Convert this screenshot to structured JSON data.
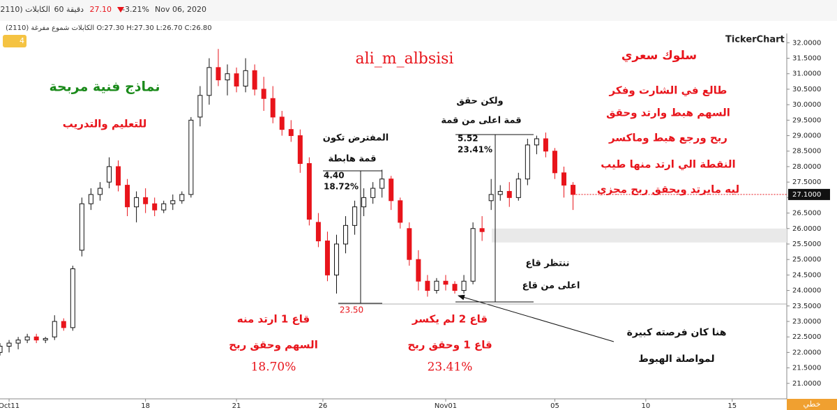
{
  "header": {
    "date": "Nov 06, 2020",
    "change": "-3.21%",
    "price": "27.10",
    "interval": "60 دقيقة",
    "symbol": "(2110) الكابلات",
    "ohlc_line": "(2110) الكابلات شموع مفرغة O:27.30 H:27.30 L:26.70 C:26.80",
    "alerts": "4",
    "logo": "TickerChart",
    "mode_button": "خطي"
  },
  "chart_data": {
    "type": "candlestick",
    "x": [
      0,
      2,
      4,
      6,
      8,
      10,
      12,
      14,
      16,
      18,
      20,
      22,
      24,
      26,
      28,
      30,
      32,
      34,
      36,
      38,
      40,
      42,
      44,
      46,
      48,
      50,
      52,
      54,
      56,
      58,
      60,
      62,
      64,
      66,
      68,
      70,
      72,
      74,
      76,
      78,
      80,
      82,
      84,
      86,
      88,
      90,
      92,
      94,
      96,
      98,
      100,
      102,
      104,
      106,
      108,
      110,
      112,
      114,
      116,
      118,
      120,
      122,
      124,
      126
    ],
    "open": [
      22.0,
      22.2,
      22.3,
      22.4,
      22.5,
      22.4,
      22.5,
      23.0,
      22.8,
      25.3,
      26.8,
      27.1,
      27.5,
      28.0,
      27.4,
      26.7,
      27.0,
      26.8,
      26.6,
      26.8,
      26.9,
      27.1,
      29.6,
      30.3,
      31.2,
      30.8,
      31.0,
      30.6,
      31.1,
      30.5,
      30.2,
      29.6,
      29.2,
      29.0,
      28.1,
      26.2,
      25.6,
      24.5,
      25.5,
      26.1,
      26.7,
      27.0,
      27.3,
      27.6,
      26.9,
      26.0,
      25.0,
      24.3,
      24.0,
      24.3,
      24.2,
      24.0,
      24.3,
      26.0,
      26.9,
      27.1,
      27.2,
      27.0,
      27.6,
      28.7,
      28.9,
      28.5,
      27.8,
      27.4
    ],
    "high": [
      22.3,
      22.4,
      22.5,
      22.6,
      22.6,
      22.5,
      23.2,
      23.1,
      24.8,
      27.0,
      27.3,
      27.5,
      28.3,
      28.2,
      27.6,
      27.2,
      27.3,
      27.0,
      26.9,
      27.1,
      27.2,
      29.6,
      30.6,
      31.5,
      31.8,
      31.3,
      31.2,
      31.5,
      31.3,
      30.9,
      30.6,
      29.8,
      29.5,
      29.2,
      28.3,
      26.5,
      25.9,
      25.8,
      26.4,
      26.9,
      27.3,
      27.5,
      27.9,
      27.7,
      27.0,
      26.2,
      25.3,
      24.5,
      24.4,
      24.5,
      24.3,
      24.5,
      26.2,
      26.4,
      27.6,
      27.4,
      27.5,
      27.8,
      28.9,
      29.0,
      29.1,
      28.6,
      28.0,
      27.5
    ],
    "low": [
      21.9,
      22.0,
      22.1,
      22.3,
      22.3,
      22.3,
      22.4,
      22.7,
      22.7,
      25.1,
      26.6,
      26.9,
      27.3,
      27.2,
      26.4,
      26.2,
      26.5,
      26.4,
      26.5,
      26.6,
      26.8,
      27.0,
      29.3,
      30.0,
      30.6,
      30.3,
      30.4,
      30.4,
      30.3,
      29.8,
      29.4,
      29.0,
      28.8,
      27.8,
      26.1,
      25.4,
      24.3,
      23.9,
      25.2,
      25.8,
      26.4,
      26.8,
      27.0,
      26.6,
      26.0,
      24.8,
      24.0,
      23.8,
      23.9,
      24.0,
      23.9,
      23.9,
      24.2,
      25.6,
      26.6,
      26.9,
      26.7,
      26.9,
      27.4,
      28.4,
      28.3,
      27.6,
      27.0,
      26.6
    ],
    "close": [
      22.2,
      22.3,
      22.4,
      22.5,
      22.4,
      22.45,
      23.0,
      22.8,
      24.7,
      26.8,
      27.1,
      27.3,
      28.0,
      27.4,
      26.7,
      27.0,
      26.8,
      26.6,
      26.8,
      26.9,
      27.1,
      29.5,
      30.3,
      31.2,
      30.8,
      31.0,
      30.6,
      31.1,
      30.5,
      30.2,
      29.6,
      29.2,
      29.0,
      28.1,
      26.3,
      25.6,
      24.5,
      25.5,
      26.1,
      26.7,
      27.0,
      27.3,
      27.6,
      26.9,
      26.2,
      25.0,
      24.3,
      24.0,
      24.3,
      24.2,
      24.0,
      24.3,
      26.0,
      25.9,
      27.1,
      27.2,
      27.0,
      27.6,
      28.7,
      28.9,
      28.5,
      27.8,
      27.4,
      27.1
    ],
    "up_color": "#ffffff",
    "down_color": "#e8141b",
    "xlim": [
      0,
      173
    ],
    "xticks": [
      {
        "value": 2,
        "label": "Oct11"
      },
      {
        "value": 32,
        "label": "18"
      },
      {
        "value": 52,
        "label": "21"
      },
      {
        "value": 71,
        "label": "26"
      },
      {
        "value": 98,
        "label": "Nov01"
      },
      {
        "value": 122,
        "label": "05"
      },
      {
        "value": 142,
        "label": "10"
      },
      {
        "value": 161,
        "label": "15"
      }
    ],
    "ylim": [
      20.5,
      32.3
    ],
    "yticks": [
      {
        "value": 21,
        "label": "21.0000"
      },
      {
        "value": 21.5,
        "label": "21.5000"
      },
      {
        "value": 22,
        "label": "22.0000"
      },
      {
        "value": 22.5,
        "label": "22.5000"
      },
      {
        "value": 23,
        "label": "23.0000"
      },
      {
        "value": 23.5,
        "label": "23.5000"
      },
      {
        "value": 24,
        "label": "24.0000"
      },
      {
        "value": 24.5,
        "label": "24.5000"
      },
      {
        "value": 25,
        "label": "25.0000"
      },
      {
        "value": 25.5,
        "label": "25.5000"
      },
      {
        "value": 26,
        "label": "26.0000"
      },
      {
        "value": 26.5,
        "label": "26.5000"
      },
      {
        "value": 27,
        "label": "27.0000"
      },
      {
        "value": 27.5,
        "label": "27.5000"
      },
      {
        "value": 28,
        "label": "28.0000"
      },
      {
        "value": 28.5,
        "label": "28.5000"
      },
      {
        "value": 29,
        "label": "29.0000"
      },
      {
        "value": 29.5,
        "label": "29.5000"
      },
      {
        "value": 30,
        "label": "30.0000"
      },
      {
        "value": 30.5,
        "label": "30.5000"
      },
      {
        "value": 31,
        "label": "31.0000"
      },
      {
        "value": 31.5,
        "label": "31.5000"
      },
      {
        "value": 32,
        "label": "32.0000"
      }
    ],
    "last_price": {
      "value": 27.1,
      "label": "27.1000"
    },
    "zone": [
      25.55,
      26.0
    ]
  },
  "annotations": [
    "ali_m_albsisi",
    "نماذج فنية مربحة",
    "للتعليم والتدريب",
    "سلوك سعري",
    "طالع في الشارت وفكر",
    "السهم هبط وارتد وحقق",
    "ربح ورجع هبط وماكسر",
    "النقطة الي ارتد منها طيب",
    "ليه مايرتد ويحقق ربح مجزي",
    "المفترض تكون",
    "قمة هابطة",
    "4.40",
    "18.72%",
    "ولكن حقق",
    "قمة اعلى من قمة",
    "5.52",
    "23.41%",
    "23.50",
    "ننتظر قاع",
    "اعلى من قاع",
    "قاع 1 ارتد منه",
    "السهم وحقق ربح",
    "18.70%",
    "قاع 2 لم يكسر",
    "قاع 1 وحقق ربح",
    "23.41%",
    "هنا كان فرصته كبيرة",
    "لمواصلة الهبوط"
  ]
}
